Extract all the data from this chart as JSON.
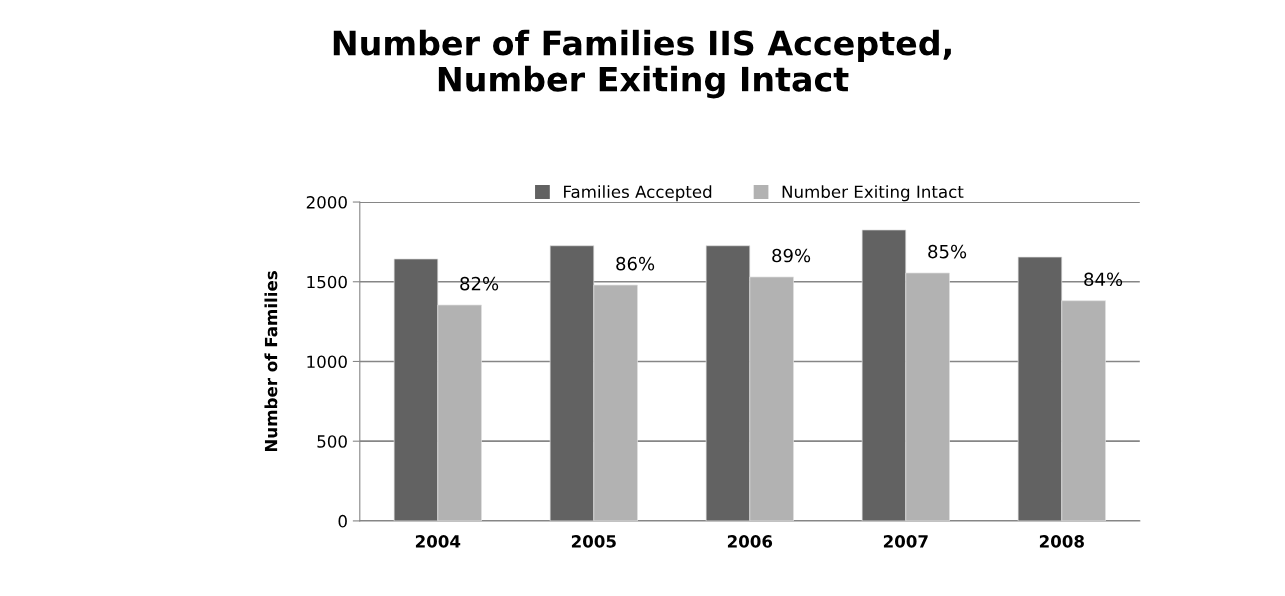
{
  "chart_data": {
    "type": "bar",
    "title": "Number of Families IIS Accepted,\nNumber Exiting Intact",
    "ylabel": "Number of Families",
    "categories": [
      "2004",
      "2005",
      "2006",
      "2007",
      "2008"
    ],
    "series": [
      {
        "name": "Families Accepted",
        "color": "#626262",
        "values": [
          1643,
          1726,
          1726,
          1825,
          1655
        ]
      },
      {
        "name": "Number Exiting Intact",
        "color": "#b2b2b2",
        "values": [
          1354,
          1479,
          1530,
          1555,
          1381
        ]
      }
    ],
    "annotations": [
      {
        "text": "82%",
        "x": "2004",
        "y": 1354
      },
      {
        "text": "86%",
        "x": "2005",
        "y": 1479
      },
      {
        "text": "89%",
        "x": "2006",
        "y": 1530
      },
      {
        "text": "85%",
        "x": "2007",
        "y": 1555
      },
      {
        "text": "84%",
        "x": "2008",
        "y": 1381
      }
    ],
    "ylim": [
      0,
      2000
    ],
    "yticks": [
      0,
      500,
      1000,
      1500,
      2000
    ],
    "grid": "y",
    "legend": "top"
  }
}
